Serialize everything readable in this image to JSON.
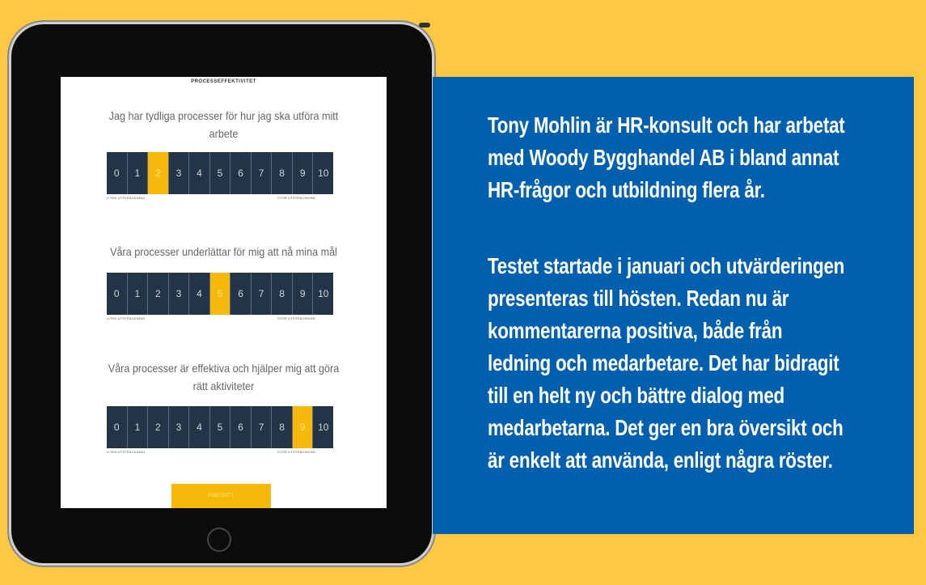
{
  "survey": {
    "header": "PROCESSEFFEKTIVITET",
    "scale_values": [
      "0",
      "1",
      "2",
      "3",
      "4",
      "5",
      "6",
      "7",
      "8",
      "9",
      "10"
    ],
    "low_label": "LITEN UTSTRÄCKNING",
    "high_label": "STOR UTSTRÄCKNING",
    "questions": [
      {
        "lines": [
          "Jag har tydliga processer för hur jag ska utföra mitt",
          "arbete"
        ],
        "selected": 2
      },
      {
        "lines": [
          "Våra processer underlättar för mig att nå mina mål"
        ],
        "selected": 5
      },
      {
        "lines": [
          "Våra processer är effektiva och hjälper mig att göra",
          "rätt aktiviteter"
        ],
        "selected": 9
      }
    ],
    "continue_label": "FORTSÄTT"
  },
  "panel": {
    "lines": [
      "Tony Mohlin är HR-konsult och har arbetat",
      "med Woody Bygghandel AB i bland annat",
      "HR-frågor och utbildning flera år.",
      "Testet startade i januari och utvärderingen",
      "presenteras till hösten. Redan nu är",
      "kommentarerna positiva, både från",
      "ledning och medarbetare. Det har bidragit",
      "till en helt ny och bättre dialog med",
      "medarbetarna. Det ger en bra översikt och",
      "är enkelt att använda, enligt några röster."
    ]
  },
  "colors": {
    "background": "#fec843",
    "panel": "#0060ad",
    "scale": "#243447",
    "selected": "#f6b90a"
  }
}
